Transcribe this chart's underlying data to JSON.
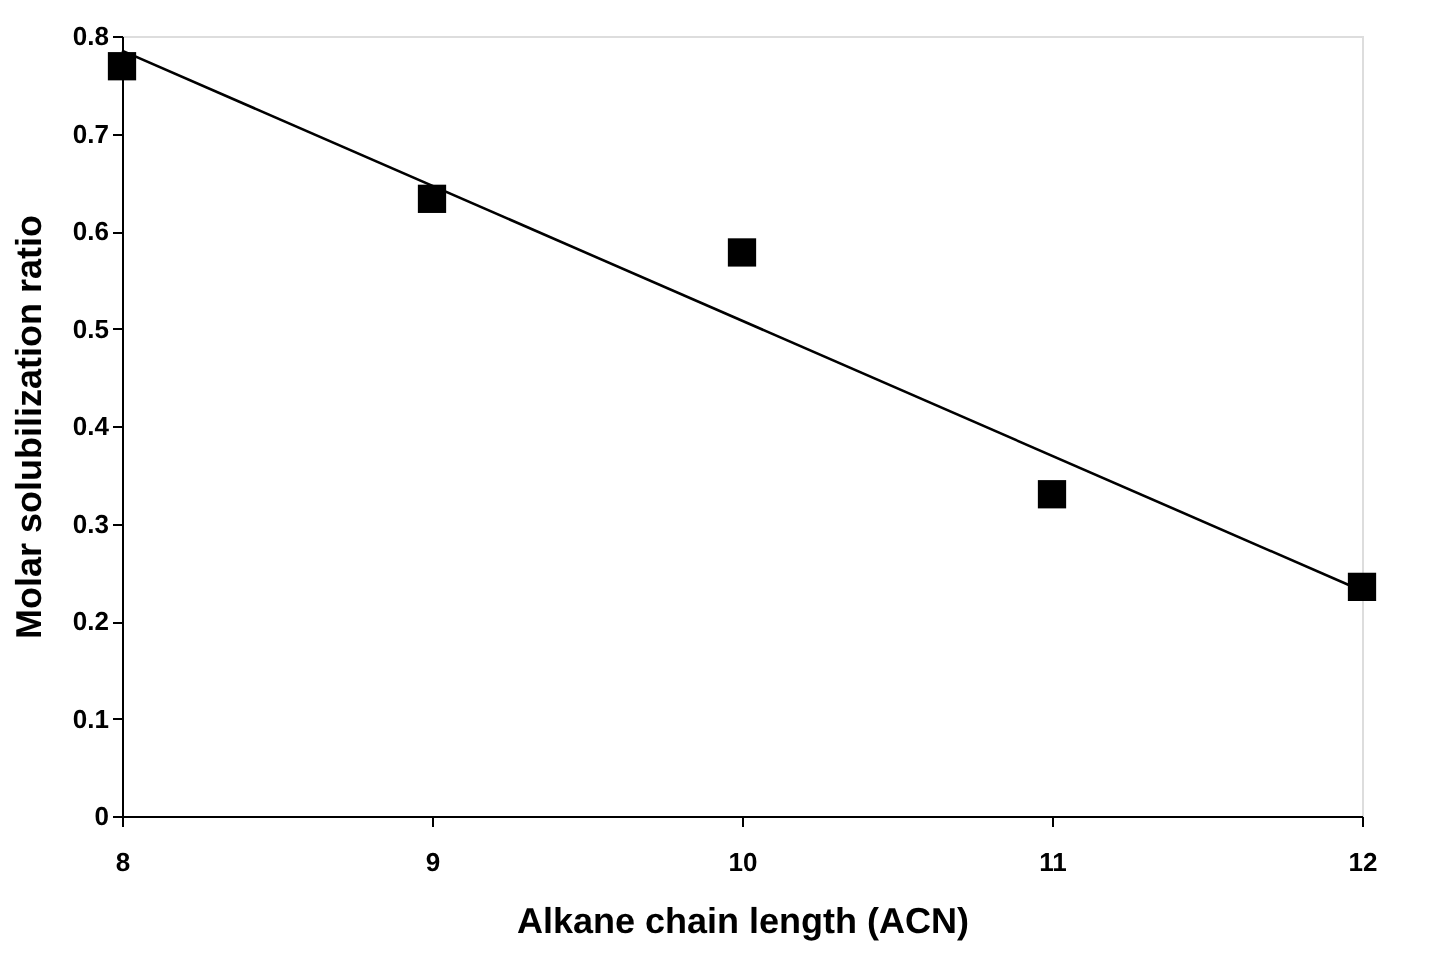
{
  "chart_data": {
    "type": "scatter",
    "xlabel": "Alkane chain length (ACN)",
    "ylabel": "Molar solubilization ratio",
    "xlim": [
      8,
      12
    ],
    "xticks": [
      8,
      9,
      10,
      11,
      12
    ],
    "ylim": [
      0,
      0.8
    ],
    "yticks": [
      0,
      0.1,
      0.2,
      0.3,
      0.4,
      0.5,
      0.6,
      0.7,
      0.8
    ],
    "grid": false,
    "series": [
      {
        "color": "#000000",
        "marker": "square",
        "x": [
          8,
          9,
          10,
          11,
          12
        ],
        "values": [
          0.769,
          0.633,
          0.578,
          0.33,
          0.235
        ]
      },
      {
        "type": "line",
        "color": "#000000",
        "marker": "none",
        "line_style": "solid",
        "x": [
          8,
          12
        ],
        "values": [
          0.785,
          0.231
        ]
      }
    ]
  }
}
